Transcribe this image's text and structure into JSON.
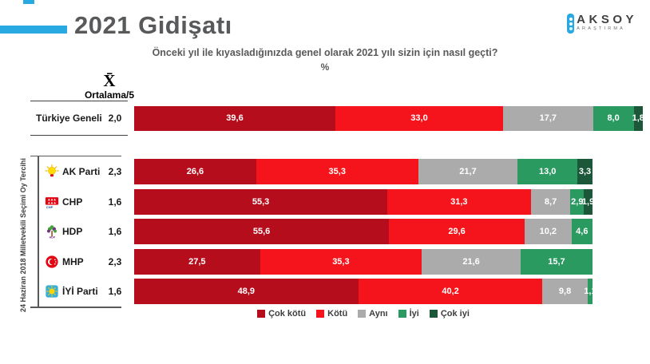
{
  "accent_color": "#29A9E1",
  "header": {
    "title": "2021 Gidişatı"
  },
  "brand": {
    "name": "AKSOY",
    "subtitle": "ARAŞTIRMA"
  },
  "question": {
    "text": "Önceki yıl ile kıyasladığınızda genel olarak 2021 yılı sizin için nasıl geçti?",
    "unit": "%"
  },
  "avg_header": {
    "symbol": "X̄",
    "label": "Ortalama/5"
  },
  "group_label": "24 Haziran 2018 Milletvekili Seçimi Oy Tercihi",
  "chart_data": {
    "type": "bar",
    "variant": "horizontal-stacked",
    "x_range": [
      0,
      100
    ],
    "value_unit": "%",
    "legend": [
      {
        "label": "Çok kötü",
        "color": "#B60D1C"
      },
      {
        "label": "Kötü",
        "color": "#F6141C"
      },
      {
        "label": "Aynı",
        "color": "#ABABAB"
      },
      {
        "label": "İyi",
        "color": "#2A9A61"
      },
      {
        "label": "Çok iyi",
        "color": "#1B5738"
      }
    ],
    "rows": [
      {
        "group": "overall",
        "label": "Türkiye Geneli",
        "average": "2,0",
        "values": [
          39.6,
          33.0,
          17.7,
          8.0,
          1.8
        ],
        "value_labels": [
          "39,6",
          "33,0",
          "17,7",
          "8,0",
          "1,8"
        ]
      },
      {
        "group": "party",
        "logo": "ak-parti-logo",
        "label": "AK Parti",
        "average": "2,3",
        "values": [
          26.6,
          35.3,
          21.7,
          13.0,
          3.3
        ],
        "value_labels": [
          "26,6",
          "35,3",
          "21,7",
          "13,0",
          "3,3"
        ]
      },
      {
        "group": "party",
        "logo": "chp-logo",
        "label": "CHP",
        "average": "1,6",
        "values": [
          55.3,
          31.3,
          8.7,
          2.9,
          1.9
        ],
        "value_labels": [
          "55,3",
          "31,3",
          "8,7",
          "2,9",
          "1,9"
        ]
      },
      {
        "group": "party",
        "logo": "hdp-logo",
        "label": "HDP",
        "average": "1,6",
        "values": [
          55.6,
          29.6,
          10.2,
          4.6
        ],
        "value_labels": [
          "55,6",
          "29,6",
          "10,2",
          "4,6"
        ]
      },
      {
        "group": "party",
        "logo": "mhp-logo",
        "label": "MHP",
        "average": "2,3",
        "values": [
          27.5,
          35.3,
          21.6,
          15.7
        ],
        "value_labels": [
          "27,5",
          "35,3",
          "21,6",
          "15,7"
        ]
      },
      {
        "group": "party",
        "logo": "iyi-parti-logo",
        "label": "İYİ Parti",
        "average": "1,6",
        "values": [
          48.9,
          40.2,
          9.8,
          1.1
        ],
        "value_labels": [
          "48,9",
          "40,2",
          "9,8",
          "1,1"
        ]
      }
    ]
  }
}
